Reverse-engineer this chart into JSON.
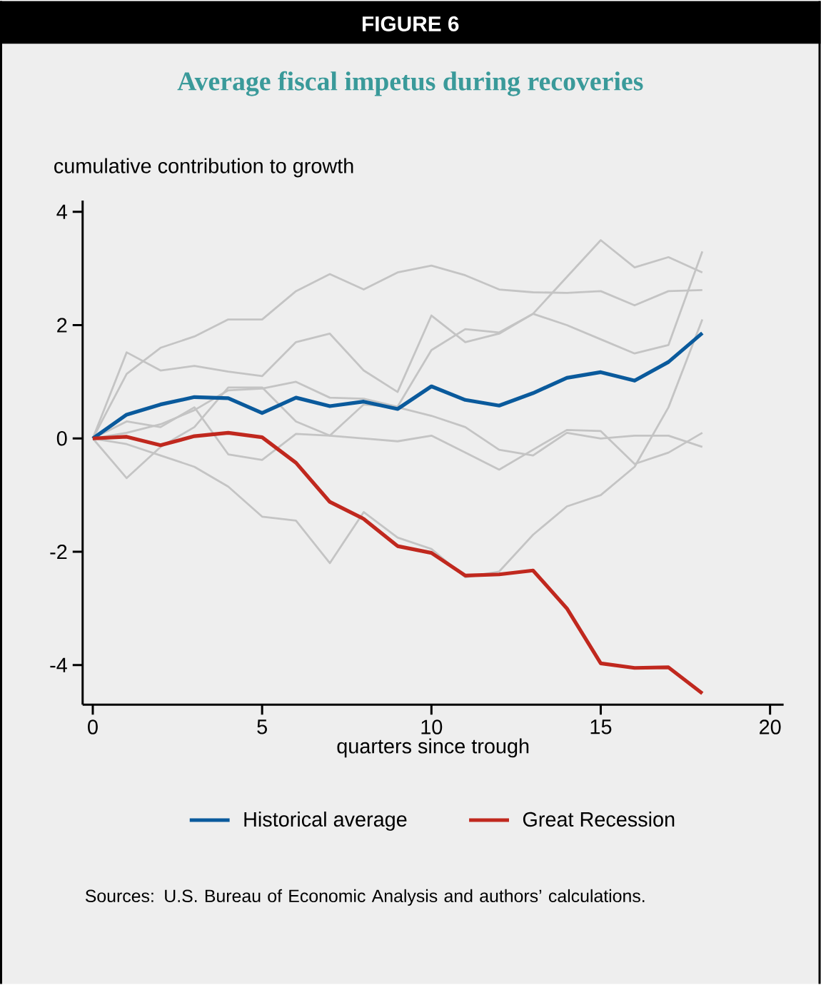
{
  "chart_data": {
    "type": "line",
    "title": "Average fiscal impetus during recoveries",
    "subtitle": "FIGURE 6",
    "ylabel": "cumulative contribution to growth",
    "xlabel": "quarters since trough",
    "x": [
      0,
      1,
      2,
      3,
      4,
      5,
      6,
      7,
      8,
      9,
      10,
      11,
      12,
      13,
      14,
      15,
      16,
      17,
      18
    ],
    "xlim": [
      -0.3,
      20.4
    ],
    "xticks": [
      0,
      5,
      10,
      15,
      20
    ],
    "ylim": [
      -4.7,
      4.2
    ],
    "yticks": [
      -4,
      -2,
      0,
      2,
      4
    ],
    "grid": false,
    "legend": "bottom",
    "marker": "none",
    "line_style": "solid",
    "series": [
      {
        "color": "#c4c4c4",
        "values": [
          0,
          1.14,
          1.6,
          1.8,
          2.1,
          2.1,
          2.6,
          2.9,
          2.63,
          2.93,
          3.05,
          2.88,
          2.63,
          2.58,
          2.57,
          2.6,
          2.35,
          2.6,
          2.62
        ]
      },
      {
        "color": "#c4c4c4",
        "values": [
          0,
          1.52,
          1.2,
          1.28,
          1.18,
          1.1,
          1.7,
          1.85,
          1.2,
          0.82,
          2.17,
          1.7,
          1.85,
          2.2,
          2.85,
          3.5,
          3.02,
          3.2,
          2.93
        ]
      },
      {
        "color": "#c4c4c4",
        "values": [
          0,
          0.1,
          0.25,
          0.5,
          0.85,
          0.88,
          1.0,
          0.72,
          0.7,
          0.56,
          1.56,
          1.93,
          1.87,
          2.2,
          2.0,
          1.75,
          1.5,
          1.65,
          3.3
        ]
      },
      {
        "color": "#c4c4c4",
        "values": [
          0,
          -0.1,
          -0.3,
          -0.5,
          -0.85,
          -1.38,
          -1.45,
          -2.2,
          -1.3,
          -1.75,
          -1.95,
          -2.45,
          -2.35,
          -1.7,
          -1.2,
          -1.0,
          -0.5,
          0.55,
          2.1
        ]
      },
      {
        "color": "#c4c4c4",
        "values": [
          0,
          -0.7,
          -0.15,
          0.2,
          0.9,
          0.9,
          0.3,
          0.05,
          0.0,
          -0.05,
          0.05,
          -0.25,
          -0.55,
          -0.2,
          0.15,
          0.13,
          -0.45,
          -0.25,
          0.1
        ]
      },
      {
        "color": "#c4c4c4",
        "values": [
          0,
          0.3,
          0.2,
          0.55,
          -0.28,
          -0.38,
          0.08,
          0.05,
          0.6,
          0.55,
          0.4,
          0.2,
          -0.2,
          -0.3,
          0.1,
          0.0,
          0.05,
          0.05,
          -0.15
        ]
      },
      {
        "name": "Historical average",
        "color": "#0a5a9c",
        "values": [
          0,
          0.42,
          0.6,
          0.73,
          0.71,
          0.45,
          0.72,
          0.57,
          0.65,
          0.52,
          0.92,
          0.68,
          0.58,
          0.8,
          1.07,
          1.17,
          1.02,
          1.35,
          1.86
        ]
      },
      {
        "name": "Great Recession",
        "color": "#c0281e",
        "values": [
          0,
          0.03,
          -0.12,
          0.04,
          0.1,
          0.02,
          -0.43,
          -1.12,
          -1.42,
          -1.9,
          -2.02,
          -2.42,
          -2.4,
          -2.33,
          -3.0,
          -3.97,
          -4.05,
          -4.04,
          -4.5
        ]
      }
    ],
    "annotations": [
      "Sources: U.S. Bureau of Economic Analysis and authors’ calculations."
    ]
  }
}
